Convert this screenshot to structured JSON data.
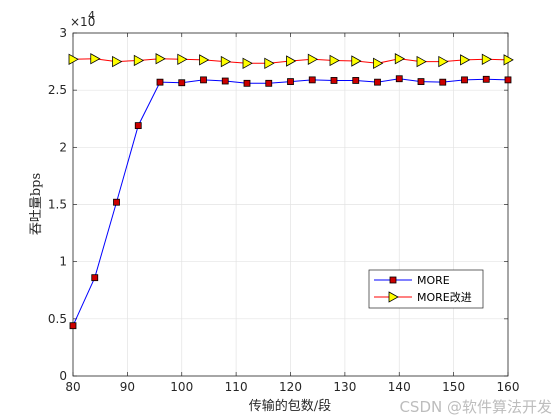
{
  "chart_data": {
    "type": "line",
    "xlabel": "传输的包数/段",
    "ylabel": "吞吐量bps",
    "xlim": [
      80,
      160
    ],
    "ylim": [
      0,
      30000
    ],
    "xticks": [
      80,
      90,
      100,
      110,
      120,
      130,
      140,
      150,
      160
    ],
    "yticks": [
      0,
      5000,
      10000,
      15000,
      20000,
      25000,
      30000
    ],
    "ytick_labels": [
      "0",
      "0.5",
      "1",
      "1.5",
      "2",
      "2.5",
      "3"
    ],
    "y_exponent_base": "×10",
    "y_exponent_power": "4",
    "grid": true,
    "legend_position": "bottom-right",
    "x": [
      80,
      84,
      88,
      92,
      96,
      100,
      104,
      108,
      112,
      116,
      120,
      124,
      128,
      132,
      136,
      140,
      144,
      148,
      152,
      156,
      160
    ],
    "series": [
      {
        "name": "MORE",
        "color": "#0000ff",
        "marker": "square",
        "marker_color": "#cc0000",
        "values": [
          4400,
          8600,
          15200,
          21900,
          25700,
          25650,
          25900,
          25800,
          25600,
          25600,
          25750,
          25900,
          25850,
          25850,
          25700,
          26000,
          25750,
          25700,
          25900,
          25950,
          25900
        ]
      },
      {
        "name": "MORE改进",
        "color": "#ff0000",
        "marker": "triangle-right",
        "marker_color": "#ffff00",
        "values": [
          27700,
          27750,
          27500,
          27600,
          27750,
          27700,
          27650,
          27500,
          27350,
          27350,
          27550,
          27700,
          27600,
          27550,
          27350,
          27750,
          27500,
          27500,
          27650,
          27700,
          27650
        ]
      }
    ]
  },
  "watermark": "CSDN @软件算法开发"
}
